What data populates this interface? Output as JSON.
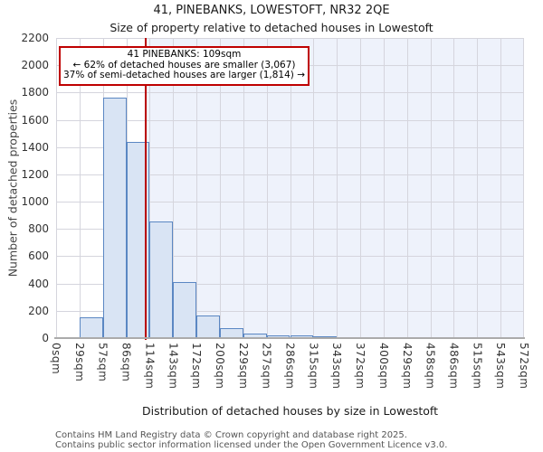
{
  "title": "41, PINEBANKS, LOWESTOFT, NR32 2QE",
  "subtitle": "Size of property relative to detached houses in Lowestoft",
  "annotation": {
    "line1": "41 PINEBANKS: 109sqm",
    "line2": "← 62% of detached houses are smaller (3,067)",
    "line3": "37% of semi-detached houses are larger (1,814) →"
  },
  "chart_data": {
    "type": "bar",
    "title": "41, PINEBANKS, LOWESTOFT, NR32 2QE — Size of property relative to detached houses in Lowestoft",
    "xlabel": "Distribution of detached houses by size in Lowestoft",
    "ylabel": "Number of detached properties",
    "categories": [
      "0sqm",
      "29sqm",
      "57sqm",
      "86sqm",
      "114sqm",
      "143sqm",
      "172sqm",
      "200sqm",
      "229sqm",
      "257sqm",
      "286sqm",
      "315sqm",
      "343sqm",
      "372sqm",
      "400sqm",
      "429sqm",
      "458sqm",
      "486sqm",
      "515sqm",
      "543sqm",
      "572sqm"
    ],
    "values": [
      5,
      150,
      1760,
      1440,
      855,
      410,
      165,
      70,
      30,
      20,
      18,
      10,
      5,
      0,
      0,
      0,
      0,
      0,
      0,
      0
    ],
    "xlim": [
      0,
      572
    ],
    "ylim": [
      0,
      2200
    ],
    "ytick_step": 200,
    "grid": true,
    "legend": false,
    "marker_value_sqm": 109,
    "colors": {
      "bar_fill": "#d9e4f4",
      "bar_edge": "#5b87c3",
      "marker_line": "#b90000",
      "annotation_border": "#bf0000",
      "larger_band": "#eef2fb",
      "grid": "#d5d5dd",
      "axis_line": "#ababab"
    }
  },
  "footer": {
    "line1": "Contains HM Land Registry data © Crown copyright and database right 2025.",
    "line2": "Contains public sector information licensed under the Open Government Licence v3.0."
  }
}
